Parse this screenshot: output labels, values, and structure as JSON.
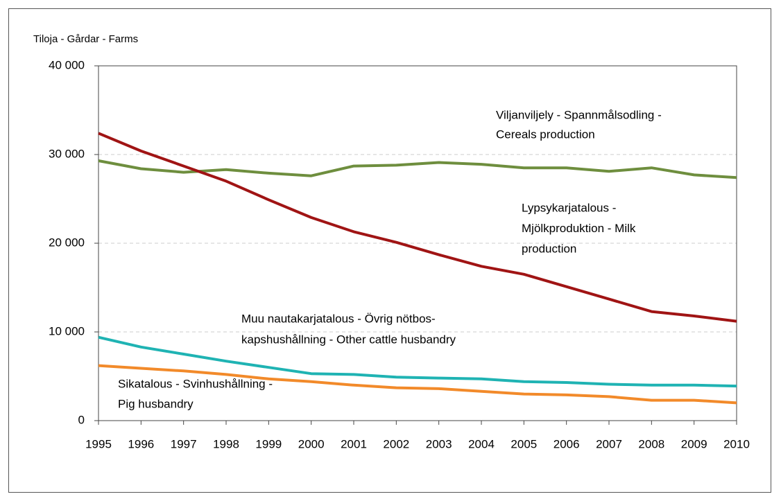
{
  "chart_data": {
    "type": "line",
    "y_axis_label": "Tiloja - Gårdar - Farms",
    "x": [
      "1995",
      "1996",
      "1997",
      "1998",
      "1999",
      "2000",
      "2001",
      "2002",
      "2003",
      "2004",
      "2005",
      "2006",
      "2007",
      "2008",
      "2009",
      "2010"
    ],
    "series": [
      {
        "name": [
          "Viljanviljely - Spannmålsodling -",
          "Cereals production"
        ],
        "color": "#6e8e3e",
        "values": [
          29300,
          28400,
          28000,
          28300,
          27900,
          27600,
          28700,
          28800,
          29100,
          28900,
          28500,
          28500,
          28100,
          28500,
          27700,
          27400
        ]
      },
      {
        "name": [
          "Lypsykarjatalous -",
          "Mjölkproduktion - Milk",
          "production"
        ],
        "color": "#a01414",
        "values": [
          32400,
          30400,
          28700,
          27000,
          24900,
          22900,
          21300,
          20100,
          18700,
          17400,
          16500,
          15100,
          13700,
          12300,
          11800,
          11200
        ]
      },
      {
        "name": [
          "Muu nautakarjatalous - Övrig nötbos-",
          "kapshushållning - Other cattle husbandry"
        ],
        "color": "#1fb3b3",
        "values": [
          9400,
          8300,
          7500,
          6700,
          6000,
          5300,
          5200,
          4900,
          4800,
          4700,
          4400,
          4300,
          4100,
          4000,
          4000,
          3900
        ]
      },
      {
        "name": [
          "Sikatalous - Svinhushållning -",
          "Pig husbandry"
        ],
        "color": "#f28a2a",
        "values": [
          6200,
          5900,
          5600,
          5200,
          4700,
          4400,
          4000,
          3700,
          3600,
          3300,
          3000,
          2900,
          2700,
          2300,
          2300,
          2000
        ]
      }
    ],
    "ylim": [
      0,
      40000
    ],
    "yticks": [
      0,
      {
        "value": 10000,
        "label": "10 000"
      },
      {
        "value": 20000,
        "label": "20 000"
      },
      {
        "value": 30000,
        "label": "30 000"
      },
      {
        "value": 40000,
        "label": "40 000"
      }
    ],
    "grid": true
  }
}
